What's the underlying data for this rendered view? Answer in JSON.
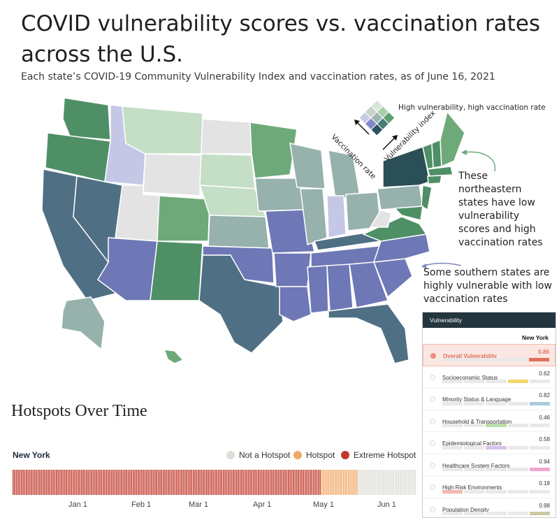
{
  "title": "COVID vulnerability scores vs. vaccination rates across the U.S.",
  "subtitle": "Each state’s COVID-19 Community Vulnerability Index and vaccination rates, as of June 16, 2021",
  "legend": {
    "top_label": "High vulnerability, high vaccination rate",
    "left_axis": "Vaccination rate",
    "right_axis": "Vulnerability index",
    "colors": [
      "#d7e6d8",
      "#a9cfa9",
      "#5f9e6e",
      "#c7d2c8",
      "#9cb5b0",
      "#4a7a78",
      "#c9cbe6",
      "#8088c6",
      "#2e5161"
    ]
  },
  "callouts": {
    "northeast": "These northeastern states have low vulnerability scores and high vaccination rates",
    "south": "Some southern states are highly vulnerable with low vaccination rates"
  },
  "state_colors": {
    "light_green": "#c5dec6",
    "mid_green": "#6ea97a",
    "dark_green": "#4e8f66",
    "gray": "#e3e3e3",
    "teal_gray": "#97b1ad",
    "lavender": "#c4c7e6",
    "blue_purple": "#6e78b6",
    "slate": "#4f6f85",
    "dark_teal": "#2b4f56"
  },
  "hotspots": {
    "title": "Hotspots Over Time",
    "state": "New York",
    "legend": [
      {
        "label": "Not a Hotspot",
        "color": "#deddd5"
      },
      {
        "label": "Hotspot",
        "color": "#f0a866"
      },
      {
        "label": "Extreme Hotspot",
        "color": "#c0392b"
      }
    ],
    "axis_labels": [
      "Jan 1",
      "Feb 1",
      "Mar 1",
      "Apr 1",
      "May 1",
      "Jun 1"
    ],
    "timeline_segments": [
      {
        "status": "Extreme Hotspot",
        "days": 185
      },
      {
        "status": "Hotspot",
        "days": 22
      },
      {
        "status": "Not a Hotspot",
        "days": 35
      }
    ]
  },
  "panel": {
    "header": "Vulnerability",
    "state": "New York",
    "rows": [
      {
        "label": "Overall Vulnerability",
        "value": "0.86",
        "color": "#e0705c",
        "active": true
      },
      {
        "label": "Socioeconomic Status",
        "value": "0.62",
        "color": "#f2d86a"
      },
      {
        "label": "Minority Status & Language",
        "value": "0.82",
        "color": "#a9cbe0"
      },
      {
        "label": "Household & Transportation",
        "value": "0.46",
        "color": "#b9dca9"
      },
      {
        "label": "Epidemiological Factors",
        "value": "0.58",
        "color": "#d6c2ea"
      },
      {
        "label": "Healthcare System Factors",
        "value": "0.94",
        "color": "#f0a5cf"
      },
      {
        "label": "High Risk Environments",
        "value": "0.18",
        "color": "#f2b6b0"
      },
      {
        "label": "Population Density",
        "value": "0.98",
        "color": "#c9c9a3"
      }
    ]
  }
}
